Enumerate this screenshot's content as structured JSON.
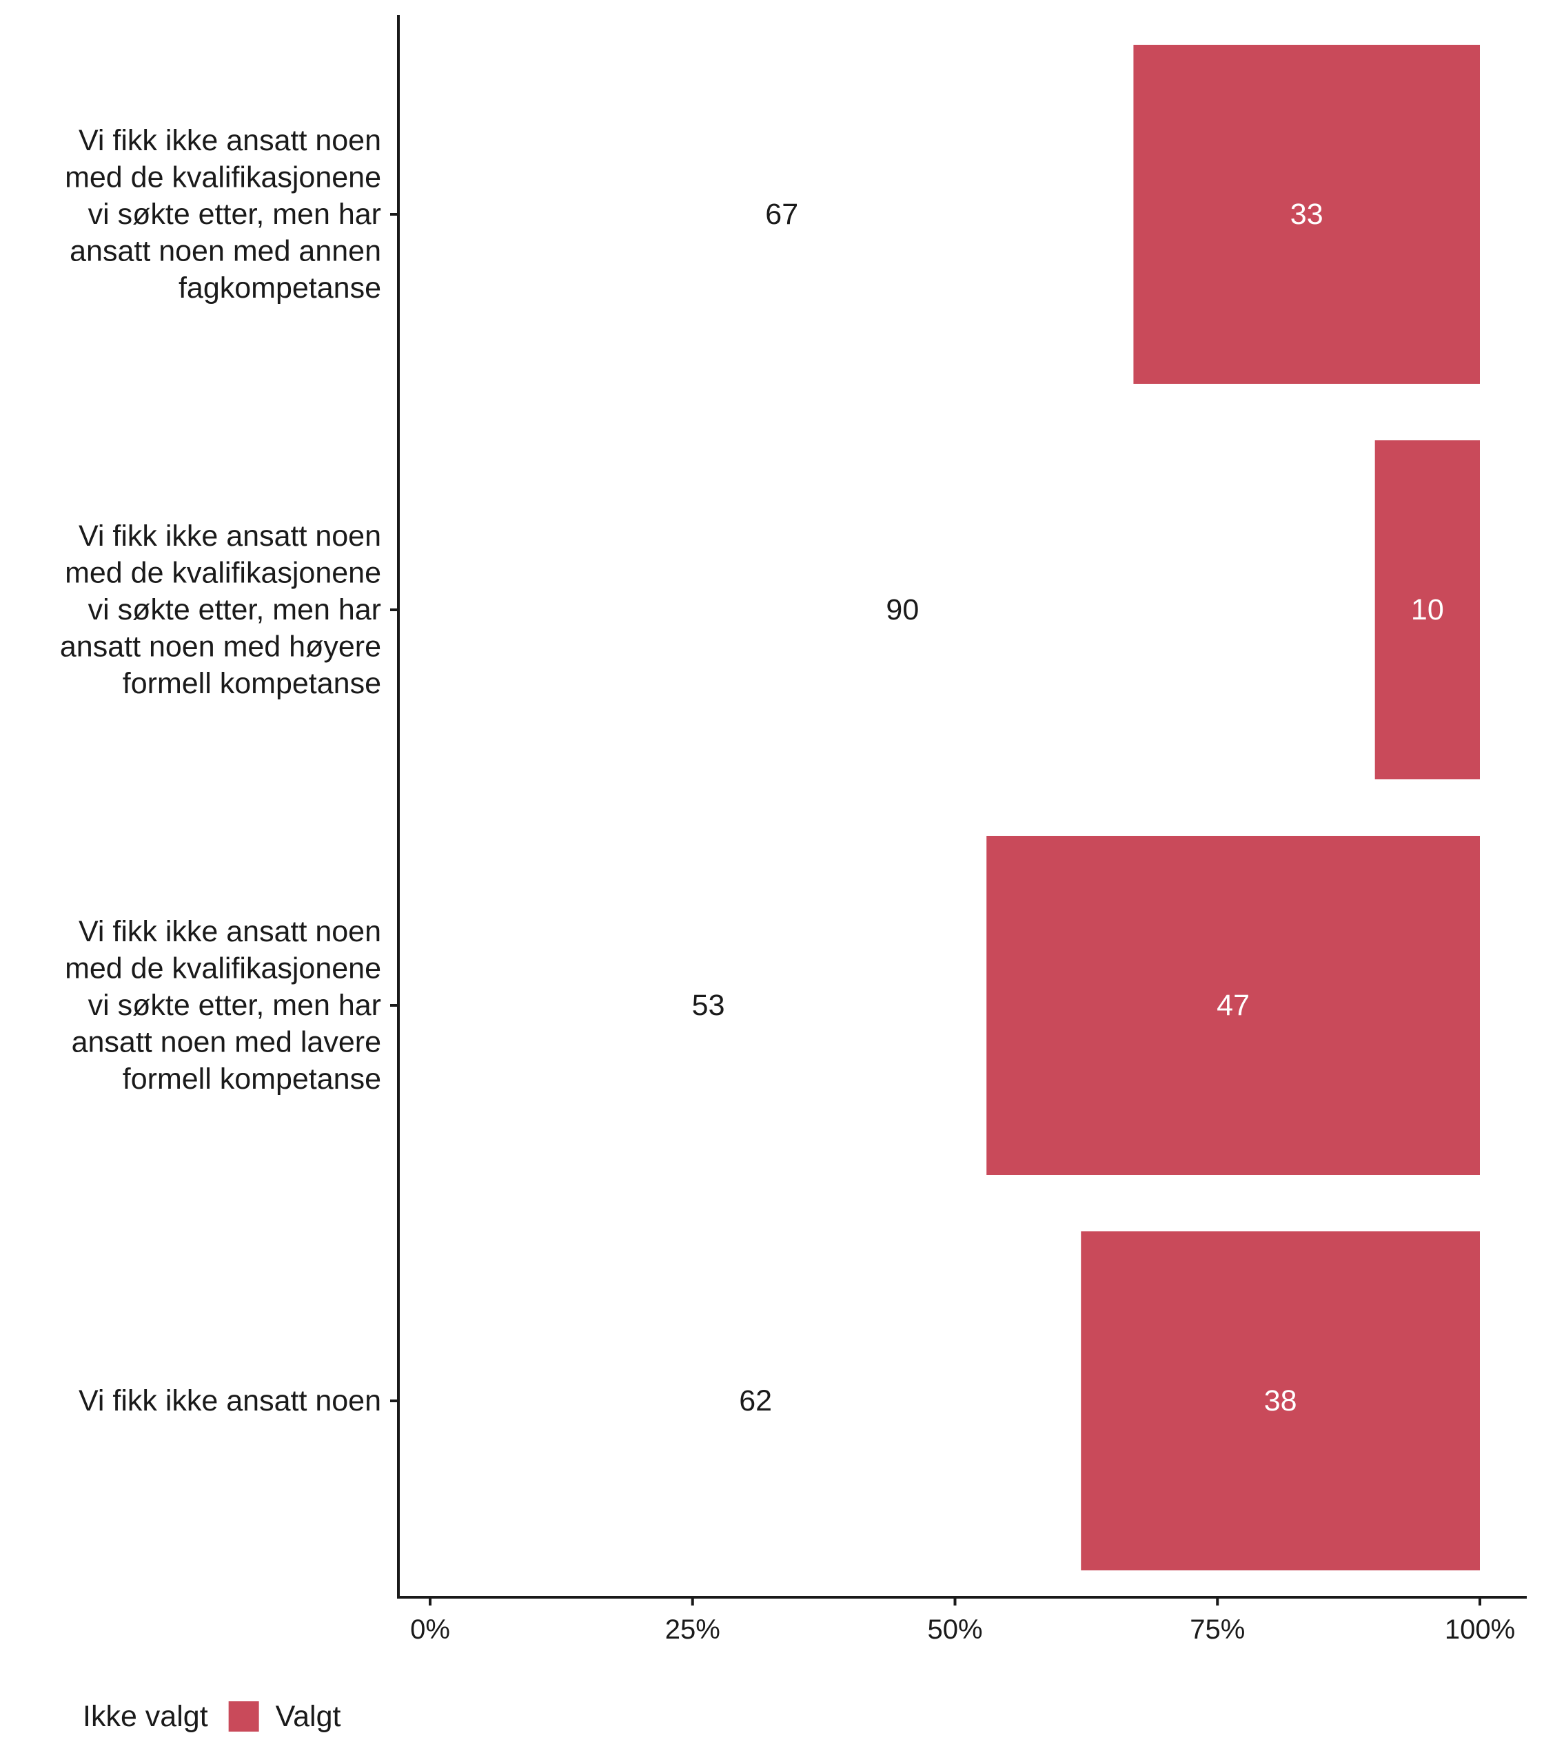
{
  "chart_data": {
    "type": "bar",
    "orientation": "horizontal",
    "stacked": true,
    "value_format": "percent",
    "xlim": [
      0,
      100
    ],
    "x_ticks": [
      {
        "value": 0,
        "label": "0%"
      },
      {
        "value": 25,
        "label": "25%"
      },
      {
        "value": 50,
        "label": "50%"
      },
      {
        "value": 75,
        "label": "75%"
      },
      {
        "value": 100,
        "label": "100%"
      }
    ],
    "categories": [
      {
        "lines": [
          "Vi fikk ikke ansatt noen",
          "med de kvalifikasjonene",
          "vi søkte etter, men har",
          "ansatt noen med annen",
          "fagkompetanse"
        ]
      },
      {
        "lines": [
          "Vi fikk ikke ansatt noen",
          "med de kvalifikasjonene",
          "vi søkte etter, men har",
          "ansatt noen med høyere",
          "formell kompetanse"
        ]
      },
      {
        "lines": [
          "Vi fikk ikke ansatt noen",
          "med de kvalifikasjonene",
          "vi søkte etter, men har",
          "ansatt noen med lavere",
          "formell kompetanse"
        ]
      },
      {
        "lines": [
          "Vi fikk ikke ansatt noen"
        ]
      }
    ],
    "series": [
      {
        "name": "Ikke valgt",
        "color": "#ffffff",
        "label_color": "#1a1a1a",
        "values": [
          67,
          90,
          53,
          62
        ],
        "labels": [
          "67",
          "90",
          "53",
          "62"
        ]
      },
      {
        "name": "Valgt",
        "color": "#c94a5a",
        "label_color": "#ffffff",
        "values": [
          33,
          10,
          47,
          38
        ],
        "labels": [
          "33",
          "10",
          "47",
          "38"
        ]
      }
    ],
    "legend_position": "bottom-left",
    "grid": false
  }
}
